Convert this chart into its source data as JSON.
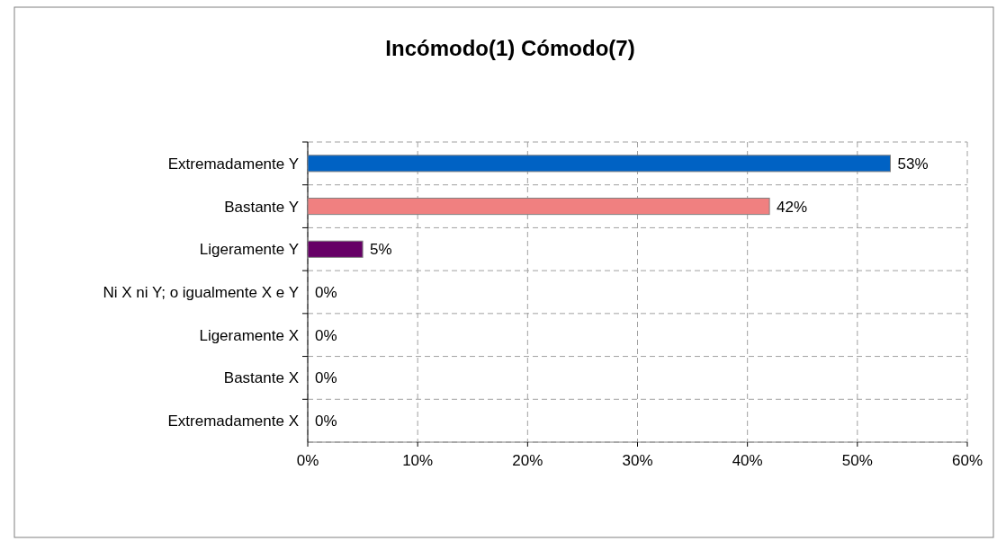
{
  "chart_data": {
    "type": "bar",
    "orientation": "horizontal",
    "title": "Incómodo(1) Cómodo(7)",
    "categories": [
      "Extremadamente Y",
      "Bastante Y",
      "Ligeramente Y",
      "Ni X ni Y; o igualmente X e Y",
      "Ligeramente X",
      "Bastante X",
      "Extremadamente X"
    ],
    "values": [
      53,
      42,
      5,
      0,
      0,
      0,
      0
    ],
    "colors": [
      "#0062c4",
      "#f08080",
      "#660066",
      "#508484",
      "#807c5c",
      "#801848",
      "#48489c"
    ],
    "value_labels": [
      "53%",
      "42%",
      "5%",
      "0%",
      "0%",
      "0%",
      "0%"
    ],
    "xlim": [
      0,
      60
    ],
    "xticks": [
      {
        "value": 0,
        "label": "0%"
      },
      {
        "value": 10,
        "label": "10%"
      },
      {
        "value": 20,
        "label": "20%"
      },
      {
        "value": 30,
        "label": "30%"
      },
      {
        "value": 40,
        "label": "40%"
      },
      {
        "value": 50,
        "label": "50%"
      },
      {
        "value": 60,
        "label": "60%"
      }
    ],
    "grid": true
  }
}
